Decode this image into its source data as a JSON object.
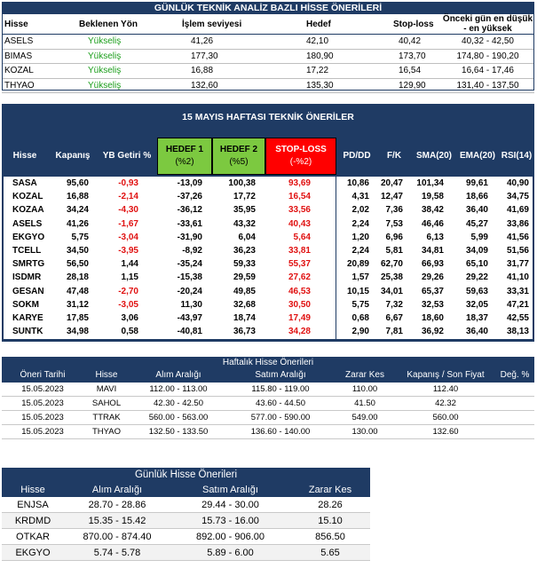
{
  "daily_tech": {
    "title": "GÜNLÜK TEKNİK ANALİZ BAZLI HİSSE ÖNERİLERİ",
    "headers": [
      "Hisse",
      "Beklenen Yön",
      "İşlem seviyesi",
      "Hedef",
      "Stop-loss",
      "Önceki gün en düşük - en yüksek"
    ],
    "rows": [
      {
        "symbol": "ASELS",
        "direction": "Yükseliş",
        "level": "41,26",
        "target": "42,10",
        "stop": "40,42",
        "range": "40,32 - 42,50"
      },
      {
        "symbol": "BIMAS",
        "direction": "Yükseliş",
        "level": "177,30",
        "target": "180,90",
        "stop": "173,70",
        "range": "174,80 - 190,20"
      },
      {
        "symbol": "KOZAL",
        "direction": "Yükseliş",
        "level": "16,88",
        "target": "17,22",
        "stop": "16,54",
        "range": "16,64 - 17,46"
      },
      {
        "symbol": "THYAO",
        "direction": "Yükseliş",
        "level": "132,60",
        "target": "135,30",
        "stop": "129,90",
        "range": "131,40 - 137,50"
      }
    ]
  },
  "weekly_tech": {
    "title": "15 MAYIS  HAFTASI TEKNİK ÖNERİLER",
    "headers": {
      "symbol": "Hisse",
      "close": "Kapanış",
      "ytd": "YB Getiri %",
      "target1": "HEDEF 1",
      "target1_sub": "(%2)",
      "target2": "HEDEF 2",
      "target2_sub": "(%5)",
      "stop": "STOP-LOSS",
      "stop_sub": "(-%2)",
      "pd_dd": "PD/DD",
      "fk": "F/K",
      "sma": "SMA(20)",
      "ema": "EMA(20)",
      "rsi": "RSI(14)"
    },
    "rows": [
      {
        "symbol": "SASA",
        "close": "95,60",
        "ytd": "-0,93",
        "t1": "-13,09",
        "t2": "100,38",
        "stop": "93,69",
        "pd_dd": "10,86",
        "fk": "20,47",
        "sma": "101,34",
        "ema": "99,61",
        "rsi": "40,90"
      },
      {
        "symbol": "KOZAL",
        "close": "16,88",
        "ytd": "-2,14",
        "t1": "-37,26",
        "t2": "17,72",
        "stop": "16,54",
        "pd_dd": "4,31",
        "fk": "12,47",
        "sma": "19,58",
        "ema": "18,66",
        "rsi": "34,75"
      },
      {
        "symbol": "KOZAA",
        "close": "34,24",
        "ytd": "-4,30",
        "t1": "-36,12",
        "t2": "35,95",
        "stop": "33,56",
        "pd_dd": "2,02",
        "fk": "7,36",
        "sma": "38,42",
        "ema": "36,40",
        "rsi": "41,69"
      },
      {
        "symbol": "ASELS",
        "close": "41,26",
        "ytd": "-1,67",
        "t1": "-33,61",
        "t2": "43,32",
        "stop": "40,43",
        "pd_dd": "2,24",
        "fk": "7,53",
        "sma": "46,46",
        "ema": "45,27",
        "rsi": "33,86"
      },
      {
        "symbol": "EKGYO",
        "close": "5,75",
        "ytd": "-3,04",
        "t1": "-31,90",
        "t2": "6,04",
        "stop": "5,64",
        "pd_dd": "1,20",
        "fk": "6,96",
        "sma": "6,13",
        "ema": "5,99",
        "rsi": "41,56"
      },
      {
        "symbol": "TCELL",
        "close": "34,50",
        "ytd": "-3,95",
        "t1": "-8,92",
        "t2": "36,23",
        "stop": "33,81",
        "pd_dd": "2,24",
        "fk": "5,81",
        "sma": "34,81",
        "ema": "34,09",
        "rsi": "51,56"
      },
      {
        "symbol": "SMRTG",
        "close": "56,50",
        "ytd": "1,44",
        "t1": "-35,24",
        "t2": "59,33",
        "stop": "55,37",
        "pd_dd": "20,89",
        "fk": "62,70",
        "sma": "66,93",
        "ema": "65,10",
        "rsi": "31,77"
      },
      {
        "symbol": "ISDMR",
        "close": "28,18",
        "ytd": "1,15",
        "t1": "-15,38",
        "t2": "29,59",
        "stop": "27,62",
        "pd_dd": "1,57",
        "fk": "25,38",
        "sma": "29,26",
        "ema": "29,22",
        "rsi": "41,10"
      },
      {
        "symbol": "GESAN",
        "close": "47,48",
        "ytd": "-2,70",
        "t1": "-20,24",
        "t2": "49,85",
        "stop": "46,53",
        "pd_dd": "10,15",
        "fk": "34,01",
        "sma": "65,37",
        "ema": "59,63",
        "rsi": "33,31"
      },
      {
        "symbol": "SOKM",
        "close": "31,12",
        "ytd": "-3,05",
        "t1": "11,30",
        "t2": "32,68",
        "stop": "30,50",
        "pd_dd": "5,75",
        "fk": "7,32",
        "sma": "32,53",
        "ema": "32,05",
        "rsi": "47,21"
      },
      {
        "symbol": "KARYE",
        "close": "17,85",
        "ytd": "3,06",
        "t1": "-43,97",
        "t2": "18,74",
        "stop": "17,49",
        "pd_dd": "0,68",
        "fk": "6,67",
        "sma": "18,60",
        "ema": "18,37",
        "rsi": "42,55"
      },
      {
        "symbol": "SUNTK",
        "close": "34,98",
        "ytd": "0,58",
        "t1": "-40,81",
        "t2": "36,73",
        "stop": "34,28",
        "pd_dd": "2,90",
        "fk": "7,81",
        "sma": "36,92",
        "ema": "36,40",
        "rsi": "38,13"
      }
    ]
  },
  "weekly_picks": {
    "title": "Haftalık Hisse Önerileri",
    "headers": [
      "Öneri Tarihi",
      "Hisse",
      "Alım Aralığı",
      "Satım Aralığı",
      "Zarar Kes",
      "Kapanış / Son Fiyat",
      "Değ. %"
    ],
    "rows": [
      {
        "date": "15.05.2023",
        "symbol": "MAVI",
        "buy": "112.00 - 113.00",
        "sell": "115.80 - 119.00",
        "stop": "110.00",
        "close": "112.40",
        "chg": ""
      },
      {
        "date": "15.05.2023",
        "symbol": "SAHOL",
        "buy": "42.30 - 42.50",
        "sell": "43.60 - 44.50",
        "stop": "41.50",
        "close": "42.32",
        "chg": ""
      },
      {
        "date": "15.05.2023",
        "symbol": "TTRAK",
        "buy": "560.00 - 563.00",
        "sell": "577.00 - 590.00",
        "stop": "549.00",
        "close": "560.00",
        "chg": ""
      },
      {
        "date": "15.05.2023",
        "symbol": "THYAO",
        "buy": "132.50 - 133.50",
        "sell": "136.60 - 140.00",
        "stop": "130.00",
        "close": "132.60",
        "chg": ""
      }
    ]
  },
  "daily_picks": {
    "title": "Günlük Hisse Önerileri",
    "headers": [
      "Hisse",
      "Alım Aralığı",
      "Satım Aralığı",
      "Zarar Kes"
    ],
    "rows": [
      {
        "symbol": "ENJSA",
        "buy": "28.70 - 28.86",
        "sell": "29.44 - 30.00",
        "stop": "28.26"
      },
      {
        "symbol": "KRDMD",
        "buy": "15.35 - 15.42",
        "sell": "15.73 - 16.00",
        "stop": "15.10"
      },
      {
        "symbol": "OTKAR",
        "buy": "870.00 - 874.40",
        "sell": "892.00 - 906.00",
        "stop": "856.50"
      },
      {
        "symbol": "EKGYO",
        "buy": "5.74 - 5.78",
        "sell": "5.89 - 6.00",
        "stop": "5.65"
      }
    ]
  },
  "colors": {
    "navy": "#1f3b64",
    "green_text": "#1a9e1a",
    "red_text": "#e01010",
    "target_green": "#7cc940",
    "stop_red": "#ff0000"
  }
}
